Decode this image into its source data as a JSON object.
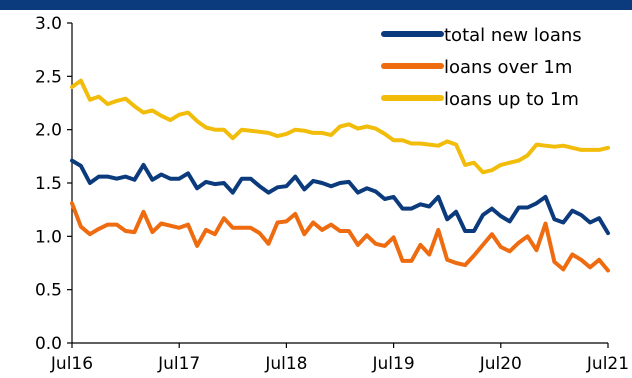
{
  "chart_data": {
    "type": "line",
    "title": "",
    "xlabel": "",
    "ylabel": "",
    "ylim": [
      0,
      3
    ],
    "yticks": [
      "0.0",
      "0.5",
      "1.0",
      "1.5",
      "2.0",
      "2.5",
      "3.0"
    ],
    "xticks": [
      "Jul16",
      "Jul17",
      "Jul18",
      "Jul19",
      "Jul20",
      "Jul21"
    ],
    "xrange_months": [
      0,
      60
    ],
    "grid": false,
    "legend_position": "top-right",
    "series": [
      {
        "name": "total new loans",
        "color": "#0b3b7c",
        "values": [
          1.71,
          1.66,
          1.5,
          1.56,
          1.56,
          1.54,
          1.56,
          1.53,
          1.67,
          1.53,
          1.58,
          1.54,
          1.54,
          1.59,
          1.45,
          1.51,
          1.49,
          1.5,
          1.41,
          1.54,
          1.54,
          1.47,
          1.41,
          1.46,
          1.47,
          1.56,
          1.44,
          1.52,
          1.5,
          1.47,
          1.5,
          1.51,
          1.41,
          1.45,
          1.42,
          1.35,
          1.37,
          1.26,
          1.26,
          1.3,
          1.28,
          1.37,
          1.16,
          1.23,
          1.05,
          1.05,
          1.2,
          1.26,
          1.19,
          1.14,
          1.27,
          1.27,
          1.31,
          1.37,
          1.16,
          1.13,
          1.24,
          1.2,
          1.13,
          1.17,
          1.03
        ]
      },
      {
        "name": "loans over 1m",
        "color": "#ee6b10",
        "values": [
          1.31,
          1.09,
          1.02,
          1.07,
          1.11,
          1.11,
          1.05,
          1.04,
          1.23,
          1.04,
          1.12,
          1.1,
          1.08,
          1.11,
          0.91,
          1.06,
          1.02,
          1.17,
          1.08,
          1.08,
          1.08,
          1.03,
          0.93,
          1.13,
          1.14,
          1.21,
          1.02,
          1.13,
          1.06,
          1.11,
          1.05,
          1.05,
          0.92,
          1.01,
          0.93,
          0.91,
          0.99,
          0.77,
          0.77,
          0.92,
          0.83,
          1.06,
          0.78,
          0.75,
          0.73,
          0.82,
          0.92,
          1.02,
          0.9,
          0.86,
          0.94,
          1.0,
          0.87,
          1.12,
          0.76,
          0.69,
          0.83,
          0.78,
          0.71,
          0.78,
          0.68
        ]
      },
      {
        "name": "loans up to 1m",
        "color": "#f2bd0a",
        "values": [
          2.4,
          2.46,
          2.28,
          2.31,
          2.24,
          2.27,
          2.29,
          2.22,
          2.16,
          2.18,
          2.13,
          2.09,
          2.14,
          2.16,
          2.08,
          2.02,
          2.0,
          2.0,
          1.92,
          2.0,
          1.99,
          1.98,
          1.97,
          1.94,
          1.96,
          2.0,
          1.99,
          1.97,
          1.97,
          1.95,
          2.03,
          2.05,
          2.01,
          2.03,
          2.01,
          1.96,
          1.9,
          1.9,
          1.87,
          1.87,
          1.86,
          1.85,
          1.89,
          1.86,
          1.67,
          1.69,
          1.6,
          1.62,
          1.67,
          1.69,
          1.71,
          1.76,
          1.86,
          1.85,
          1.84,
          1.85,
          1.83,
          1.81,
          1.81,
          1.81,
          1.83
        ]
      }
    ]
  }
}
